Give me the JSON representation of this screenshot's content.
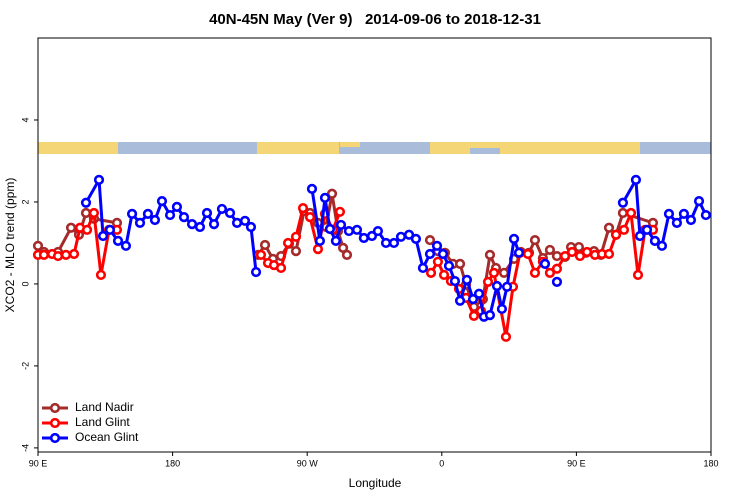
{
  "chart_data": {
    "type": "line",
    "title": "40N-45N May (Ver 9)   2014-09-06 to 2018-12-31",
    "x_label": "Longitude",
    "y_label": "XCO2 - MLO trend (ppm)",
    "xlim": [
      90,
      540
    ],
    "xticks": [
      {
        "value": 90,
        "label": "90 E"
      },
      {
        "value": 180,
        "label": "180"
      },
      {
        "value": 270,
        "label": "90 W"
      },
      {
        "value": 360,
        "label": "0"
      },
      {
        "value": 450,
        "label": "90 E"
      },
      {
        "value": 540,
        "label": "180"
      }
    ],
    "ylim": [
      -4.1,
      6
    ],
    "yticks": [
      -4,
      -2,
      0,
      2,
      4
    ],
    "legend": "bottom-left",
    "series": [
      {
        "name": "Land Nadir",
        "color": "#a52a2a",
        "x": [
          90,
          94,
          103.4,
          112.1,
          117.4,
          122.1,
          127.4,
          142.8,
          null,
          237.1,
          241.8,
          247.1,
          252.5,
          257.8,
          262.5,
          267.9,
          271.9,
          277.2,
          282.6,
          286.6,
          290.6,
          294.0,
          296.6,
          null,
          352.1,
          357.4,
          362.1,
          367.5,
          372.2,
          376.2,
          381.5,
          387.5,
          392.2,
          396.2,
          401.6,
          408.3,
          412.9,
          418.3,
          422.3,
          427.6,
          432.3,
          437.0,
          442.4,
          446.4,
          451.7,
          456.4,
          461.8,
          466.4,
          471.8,
          476.5,
          481.1,
          501.2
        ],
        "values": [
          0.93,
          0.78,
          0.78,
          1.37,
          1.2,
          1.73,
          1.59,
          1.49,
          null,
          0.71,
          0.95,
          0.61,
          0.68,
          0.98,
          0.8,
          1.78,
          1.73,
          1.49,
          1.39,
          2.2,
          1.29,
          0.88,
          0.71,
          null,
          1.07,
          0.8,
          0.76,
          0.49,
          0.49,
          -0.02,
          -0.56,
          -0.37,
          0.71,
          0.39,
          0.27,
          0.61,
          0.78,
          0.76,
          1.07,
          0.63,
          0.83,
          0.68,
          0.66,
          0.9,
          0.9,
          0.76,
          0.8,
          0.71,
          1.37,
          1.2,
          1.73,
          1.49
        ]
      },
      {
        "name": "Land Glint",
        "color": "#ff0000",
        "x": [
          90,
          94,
          99.4,
          103.4,
          108.7,
          114.1,
          118.1,
          122.8,
          127.4,
          132.1,
          137.5,
          142.8,
          null,
          239.1,
          243.8,
          247.8,
          252.5,
          257.2,
          262.5,
          267.2,
          271.9,
          277.2,
          281.9,
          287.2,
          291.9,
          null,
          352.8,
          357.4,
          361.5,
          366.1,
          371.5,
          376.2,
          381.5,
          386.2,
          390.9,
          394.9,
          402.9,
          407.6,
          412.3,
          417.6,
          422.3,
          427.6,
          432.3,
          437.0,
          442.4,
          447.1,
          452.4,
          457.1,
          462.4,
          467.1,
          471.8,
          476.5,
          481.8,
          486.5,
          491.2,
          495.9,
          501.2
        ],
        "values": [
          0.71,
          0.71,
          0.73,
          0.68,
          0.71,
          0.73,
          1.37,
          1.32,
          1.73,
          0.22,
          1.32,
          1.32,
          null,
          0.71,
          0.51,
          0.46,
          0.39,
          1.0,
          1.15,
          1.85,
          1.63,
          0.85,
          1.71,
          1.32,
          1.76,
          null,
          0.27,
          0.54,
          0.22,
          0.07,
          -0.12,
          -0.34,
          -0.78,
          -0.66,
          0.05,
          0.27,
          -1.29,
          -0.07,
          0.76,
          0.73,
          0.27,
          0.54,
          0.27,
          0.37,
          0.68,
          0.78,
          0.68,
          0.78,
          0.71,
          0.73,
          0.73,
          1.2,
          1.32,
          1.73,
          0.22,
          1.32,
          1.32
        ]
      },
      {
        "name": "Ocean Glint",
        "color": "#0000ff",
        "x": [
          122.1,
          130.8,
          133.5,
          138.1,
          143.5,
          148.8,
          152.9,
          158.2,
          163.5,
          168.2,
          172.9,
          178.3,
          182.9,
          187.6,
          193.0,
          198.3,
          203.0,
          207.7,
          213.0,
          218.4,
          223.1,
          228.4,
          232.4,
          235.8,
          null,
          273.2,
          278.5,
          281.9,
          285.2,
          289.2,
          292.6,
          297.9,
          303.3,
          307.9,
          313.3,
          317.3,
          322.7,
          328.0,
          332.7,
          338.1,
          342.7,
          347.4,
          352.1,
          356.8,
          360.8,
          364.8,
          368.8,
          372.2,
          376.8,
          380.9,
          384.9,
          388.2,
          392.2,
          396.9,
          400.2,
          403.6,
          408.3,
          411.6,
          null,
          429.0,
          null,
          437.0,
          null,
          481.1,
          489.8,
          492.5,
          497.2,
          502.5,
          507.2,
          511.9,
          517.2,
          521.9,
          526.6,
          532.0,
          536.6
        ],
        "values": [
          1.98,
          2.54,
          1.17,
          1.32,
          1.05,
          0.93,
          1.71,
          1.49,
          1.71,
          1.56,
          2.02,
          1.68,
          1.88,
          1.63,
          1.46,
          1.39,
          1.73,
          1.46,
          1.83,
          1.73,
          1.49,
          1.54,
          1.39,
          0.29,
          null,
          2.32,
          1.05,
          2.1,
          1.34,
          1.05,
          1.44,
          1.29,
          1.32,
          1.12,
          1.17,
          1.29,
          1.0,
          1.0,
          1.15,
          1.2,
          1.1,
          0.39,
          0.73,
          0.93,
          0.73,
          0.44,
          0.07,
          -0.41,
          0.1,
          -0.37,
          -0.24,
          -0.8,
          -0.76,
          -0.05,
          -0.61,
          -0.07,
          1.1,
          0.76,
          null,
          0.49,
          null,
          0.05,
          null,
          1.98,
          2.54,
          1.17,
          1.32,
          1.05,
          0.93,
          1.71,
          1.49,
          1.71,
          1.56,
          2.02,
          1.68
        ]
      }
    ]
  }
}
